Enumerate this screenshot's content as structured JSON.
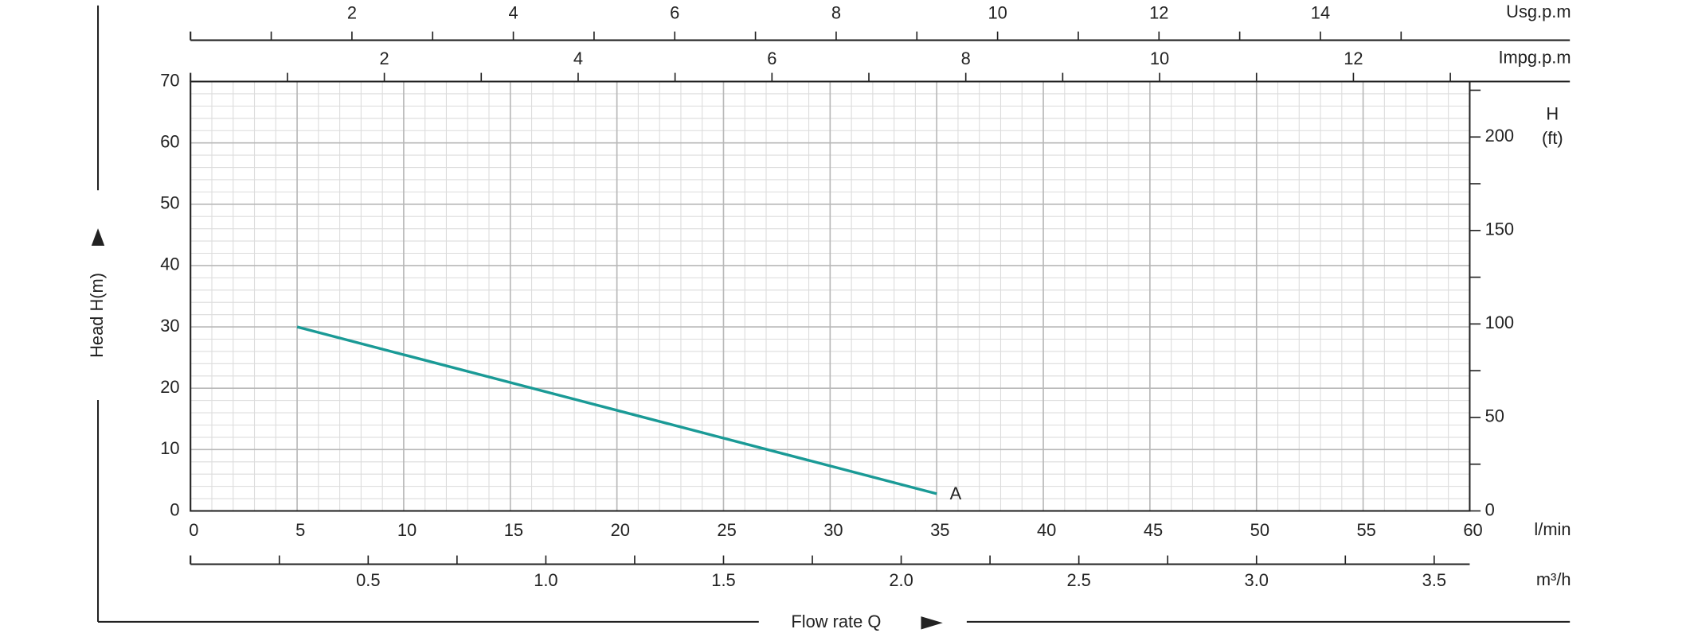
{
  "chart_data": {
    "type": "line",
    "xlabel": "l/min",
    "ylabel": "Head H(m)",
    "axis_title": "Flow rate Q",
    "xlim": [
      0,
      60
    ],
    "xticks": [
      0,
      5,
      10,
      15,
      20,
      25,
      30,
      35,
      40,
      45,
      50,
      55,
      60
    ],
    "ylim": [
      0,
      70
    ],
    "yticks": [
      0,
      10,
      20,
      30,
      40,
      50,
      60,
      70
    ],
    "x_minor_step": 1,
    "y_minor_step": 2,
    "grid": true,
    "y2label": [
      "H",
      "(ft)"
    ],
    "y2lim": [
      0,
      229.66
    ],
    "y2ticks": [
      0,
      50,
      100,
      150,
      200
    ],
    "y2_minor_ticks": [
      25,
      75,
      125,
      175,
      225
    ],
    "secondary_x_axes": [
      {
        "label": "Usg.p.m",
        "position": "top",
        "lim": [
          0,
          15.85
        ],
        "ticks": [
          2,
          4,
          6,
          8,
          10,
          12,
          14
        ],
        "minor_ticks": [
          1,
          3,
          5,
          7,
          9,
          11,
          13,
          15
        ]
      },
      {
        "label": "Impg.p.m",
        "position": "plot-top",
        "lim": [
          0,
          13.2
        ],
        "ticks": [
          2,
          4,
          6,
          8,
          10,
          12
        ],
        "minor_ticks": [
          1,
          3,
          5,
          7,
          9,
          11,
          13
        ]
      },
      {
        "label": "m³/h",
        "position": "bottom",
        "lim": [
          0,
          3.6
        ],
        "ticks": [
          {
            "value": 0.5,
            "label": "0.5"
          },
          {
            "value": 1,
            "label": "1.0"
          },
          {
            "value": 1.5,
            "label": "1.5"
          },
          {
            "value": 2,
            "label": "2.0"
          },
          {
            "value": 2.5,
            "label": "2.5"
          },
          {
            "value": 3,
            "label": "3.0"
          },
          {
            "value": 3.5,
            "label": "3.5"
          }
        ],
        "minor_ticks": [
          0,
          0.25,
          0.75,
          1.25,
          1.75,
          2.25,
          2.75,
          3.25
        ]
      }
    ],
    "series": [
      {
        "name": "A",
        "color": "#1a9a96",
        "x": [
          5,
          35
        ],
        "values": [
          30,
          2.8
        ]
      }
    ]
  }
}
